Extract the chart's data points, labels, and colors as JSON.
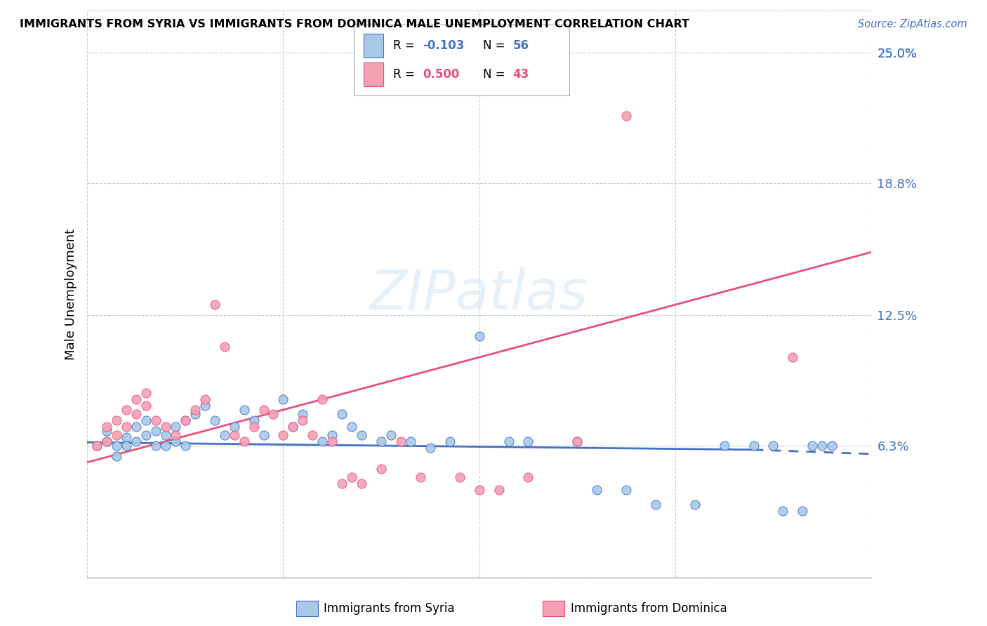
{
  "title": "IMMIGRANTS FROM SYRIA VS IMMIGRANTS FROM DOMINICA MALE UNEMPLOYMENT CORRELATION CHART",
  "source": "Source: ZipAtlas.com",
  "ylabel": "Male Unemployment",
  "ytick_labels": [
    "25.0%",
    "18.8%",
    "12.5%",
    "6.3%"
  ],
  "ytick_values": [
    0.25,
    0.188,
    0.125,
    0.063
  ],
  "xlim": [
    0.0,
    0.08
  ],
  "ylim": [
    0.0,
    0.27
  ],
  "legend_syria_R": "-0.103",
  "legend_syria_N": "56",
  "legend_dominica_R": "0.500",
  "legend_dominica_N": "43",
  "syria_color": "#a8c8e8",
  "dominica_color": "#f4a0b5",
  "syria_line_color": "#4472c4",
  "dominica_line_color": "#e8507a",
  "syria_line_solid": [
    [
      0.0,
      0.0645
    ],
    [
      0.068,
      0.061
    ]
  ],
  "syria_line_dashed": [
    [
      0.068,
      0.061
    ],
    [
      0.08,
      0.059
    ]
  ],
  "dominica_line": [
    [
      0.0,
      0.055
    ],
    [
      0.08,
      0.155
    ]
  ],
  "syria_x": [
    0.001,
    0.002,
    0.002,
    0.003,
    0.003,
    0.004,
    0.004,
    0.005,
    0.005,
    0.006,
    0.006,
    0.007,
    0.007,
    0.008,
    0.008,
    0.009,
    0.009,
    0.01,
    0.01,
    0.011,
    0.012,
    0.013,
    0.014,
    0.015,
    0.016,
    0.017,
    0.018,
    0.02,
    0.021,
    0.022,
    0.024,
    0.025,
    0.026,
    0.027,
    0.028,
    0.03,
    0.031,
    0.033,
    0.035,
    0.037,
    0.04,
    0.043,
    0.045,
    0.05,
    0.052,
    0.055,
    0.058,
    0.062,
    0.065,
    0.068,
    0.07,
    0.071,
    0.073,
    0.074,
    0.075,
    0.076
  ],
  "syria_y": [
    0.063,
    0.07,
    0.065,
    0.063,
    0.058,
    0.067,
    0.063,
    0.072,
    0.065,
    0.075,
    0.068,
    0.063,
    0.07,
    0.068,
    0.063,
    0.065,
    0.072,
    0.075,
    0.063,
    0.078,
    0.082,
    0.075,
    0.068,
    0.072,
    0.08,
    0.075,
    0.068,
    0.085,
    0.072,
    0.078,
    0.065,
    0.068,
    0.078,
    0.072,
    0.068,
    0.065,
    0.068,
    0.065,
    0.062,
    0.065,
    0.115,
    0.065,
    0.065,
    0.065,
    0.042,
    0.042,
    0.035,
    0.035,
    0.063,
    0.063,
    0.063,
    0.032,
    0.032,
    0.063,
    0.063,
    0.063
  ],
  "dominica_x": [
    0.001,
    0.002,
    0.002,
    0.003,
    0.003,
    0.004,
    0.004,
    0.005,
    0.005,
    0.006,
    0.006,
    0.007,
    0.008,
    0.009,
    0.01,
    0.011,
    0.012,
    0.013,
    0.014,
    0.015,
    0.016,
    0.017,
    0.018,
    0.019,
    0.02,
    0.021,
    0.022,
    0.023,
    0.024,
    0.025,
    0.026,
    0.027,
    0.028,
    0.03,
    0.032,
    0.034,
    0.038,
    0.04,
    0.042,
    0.045,
    0.05,
    0.055,
    0.072
  ],
  "dominica_y": [
    0.063,
    0.072,
    0.065,
    0.075,
    0.068,
    0.08,
    0.072,
    0.085,
    0.078,
    0.088,
    0.082,
    0.075,
    0.072,
    0.068,
    0.075,
    0.08,
    0.085,
    0.13,
    0.11,
    0.068,
    0.065,
    0.072,
    0.08,
    0.078,
    0.068,
    0.072,
    0.075,
    0.068,
    0.085,
    0.065,
    0.045,
    0.048,
    0.045,
    0.052,
    0.065,
    0.048,
    0.048,
    0.042,
    0.042,
    0.048,
    0.065,
    0.22,
    0.105
  ]
}
